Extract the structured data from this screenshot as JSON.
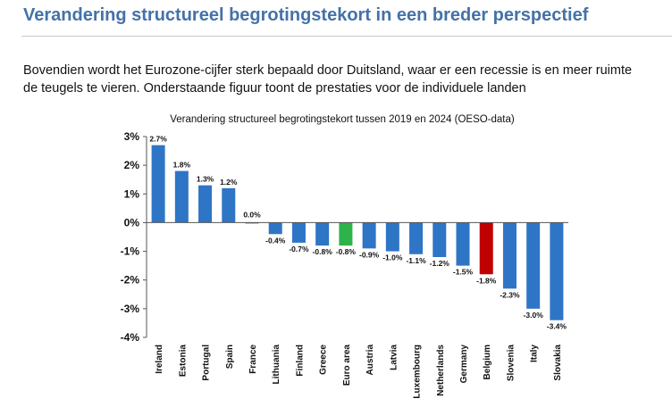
{
  "page": {
    "title": "Verandering structureel begrotingstekort in een breder perspectief",
    "intro_line1": "Bovendien wordt het Eurozone-cijfer sterk bepaald door Duitsland, waar er een recessie is en meer ruimte",
    "intro_line2": "de teugels te vieren. Onderstaande figuur toont de prestaties voor de individuele landen"
  },
  "chart_data": {
    "type": "bar",
    "title": "Verandering structureel begrotingstekort tussen 2019 en 2024 (OESO-data)",
    "xlabel": "",
    "ylabel": "",
    "categories": [
      "Ireland",
      "Estonia",
      "Portugal",
      "Spain",
      "France",
      "Lithuania",
      "Finland",
      "Greece",
      "Euro area",
      "Austria",
      "Latvia",
      "Luxembourg",
      "Netherlands",
      "Germany",
      "Belgium",
      "Slovenia",
      "Italy",
      "Slovakia"
    ],
    "values": [
      2.7,
      1.8,
      1.3,
      1.2,
      0.0,
      -0.4,
      -0.7,
      -0.8,
      -0.8,
      -0.9,
      -1.0,
      -1.1,
      -1.2,
      -1.5,
      -1.8,
      -2.3,
      -3.0,
      -3.4
    ],
    "value_labels": [
      "2.7%",
      "1.8%",
      "1.3%",
      "1.2%",
      "0.0%",
      "-0.4%",
      "-0.7%",
      "-0.8%",
      "-0.8%",
      "-0.9%",
      "-1.0%",
      "-1.1%",
      "-1.2%",
      "-1.5%",
      "-1.8%",
      "-2.3%",
      "-3.0%",
      "-3.4%"
    ],
    "ylim": [
      -4,
      3
    ],
    "yticks": [
      3,
      2,
      1,
      0,
      -1,
      -2,
      -3,
      -4
    ],
    "ytick_labels": [
      "3%",
      "2%",
      "1%",
      "0%",
      "-1%",
      "-2%",
      "-3%",
      "-4%"
    ],
    "grid": false,
    "legend": "none",
    "colors": {
      "default": "#2e75c6",
      "Euro area": "#2db34a",
      "Belgium": "#c00000"
    }
  }
}
